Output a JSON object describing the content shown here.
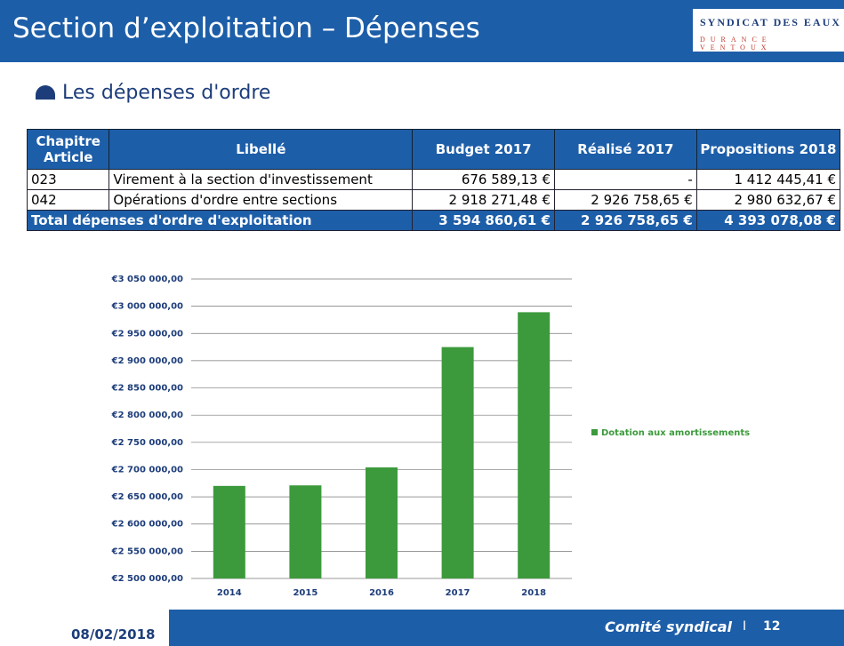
{
  "header": {
    "title": "Section d’exploitation – Dépenses",
    "logo_top": "SYNDICAT DES EAUX",
    "logo_bottom": "DURANCE VENTOUX"
  },
  "subtitle": "Les dépenses d'ordre",
  "table": {
    "header": [
      "Chapitre Article",
      "Libellé",
      "Budget 2017",
      "Réalisé 2017",
      "Propositions 2018"
    ],
    "rows": [
      [
        "023",
        "Virement à la section d'investissement",
        "676 589,13 €",
        "-",
        "1 412 445,41 €"
      ],
      [
        "042",
        "Opérations d'ordre entre sections",
        "2 918 271,48 €",
        "2 926 758,65 €",
        "2 980 632,67 €"
      ]
    ],
    "total": [
      "Total dépenses d'ordre d'exploitation",
      "3 594 860,61 €",
      "2 926 758,65 €",
      "4 393 078,08 €"
    ]
  },
  "chart_data": {
    "type": "bar",
    "categories": [
      "2014",
      "2015",
      "2016",
      "2017",
      "2018"
    ],
    "series": [
      {
        "name": "Dotation aux amortissements",
        "color": "#3c9a3c",
        "values": [
          2670000,
          2671000,
          2704000,
          2925000,
          2989000
        ]
      }
    ],
    "ylim": [
      2500000,
      3050000
    ],
    "yticks": [
      {
        "value": 2500000,
        "label": "€2 500 000,00"
      },
      {
        "value": 2550000,
        "label": "€2 550 000,00"
      },
      {
        "value": 2600000,
        "label": "€2 600 000,00"
      },
      {
        "value": 2650000,
        "label": "€2 650 000,00"
      },
      {
        "value": 2700000,
        "label": "€2 700 000,00"
      },
      {
        "value": 2750000,
        "label": "€2 750 000,00"
      },
      {
        "value": 2800000,
        "label": "€2 800 000,00"
      },
      {
        "value": 2850000,
        "label": "€2 850 000,00"
      },
      {
        "value": 2900000,
        "label": "€2 900 000,00"
      },
      {
        "value": 2950000,
        "label": "€2 950 000,00"
      },
      {
        "value": 3000000,
        "label": "€3 000 000,00"
      },
      {
        "value": 3050000,
        "label": "€3 050 000,00"
      }
    ],
    "grid": true,
    "legend": "right"
  },
  "footer": {
    "date": "08/02/2018",
    "label": "Comité syndical",
    "page": "12"
  }
}
